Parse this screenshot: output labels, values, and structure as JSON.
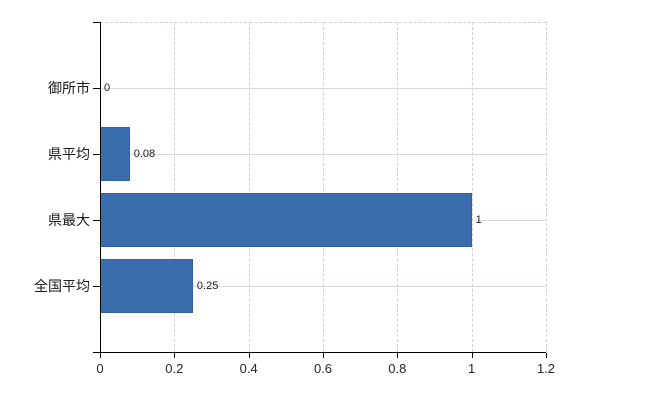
{
  "chart_data": {
    "type": "bar",
    "orientation": "horizontal",
    "title": "",
    "xlabel": "",
    "ylabel": "",
    "categories": [
      "御所市",
      "県平均",
      "県最大",
      "全国平均"
    ],
    "values": [
      0,
      0.08,
      1,
      0.25
    ],
    "value_labels": [
      "0",
      "0.08",
      "1",
      "0.25"
    ],
    "xlim": [
      0,
      1.2
    ],
    "x_ticks": [
      0,
      0.2,
      0.4,
      0.6,
      0.8,
      1,
      1.2
    ],
    "x_tick_labels": [
      "0",
      "0.2",
      "0.4",
      "0.6",
      "0.8",
      "1",
      "1.2"
    ],
    "grid": true,
    "legend_position": "none",
    "colors": {
      "bar": "#3a6dad",
      "bar_border": "#31619e",
      "axis": "#000000",
      "grid_horizontal": "#d5ddd5",
      "grid_vertical": "#d3ced9",
      "text": "#1a1a1a"
    }
  }
}
